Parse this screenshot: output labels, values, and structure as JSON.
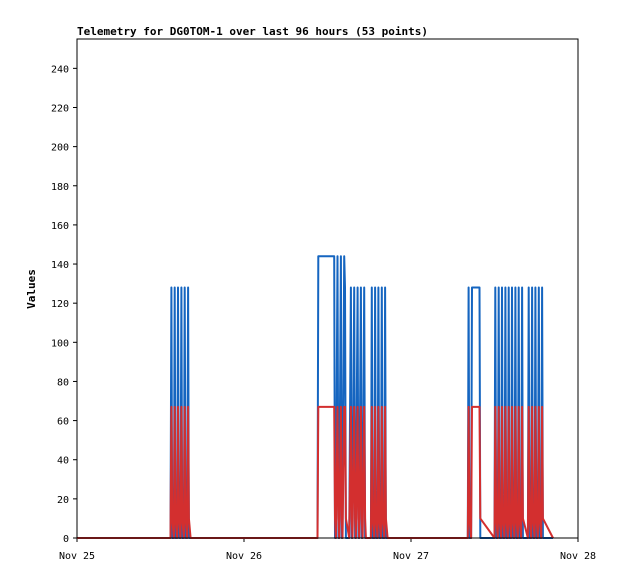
{
  "chart_data": {
    "type": "line",
    "title": "Telemetry for DG0TOM-1 over last 96 hours (53 points)",
    "ylabel": "Values",
    "xlabel": "",
    "ylim": [
      0,
      255
    ],
    "xlim": [
      0,
      3
    ],
    "x_tick_labels": [
      {
        "x": 0,
        "label": "Nov 25"
      },
      {
        "x": 1,
        "label": "Nov 26"
      },
      {
        "x": 2,
        "label": "Nov 27"
      },
      {
        "x": 3,
        "label": "Nov 28"
      }
    ],
    "y_ticks": [
      0,
      20,
      40,
      60,
      80,
      100,
      120,
      140,
      160,
      180,
      200,
      220,
      240
    ],
    "grid": false,
    "series": [
      {
        "color": "#1565c0",
        "x": [
          0,
          0.56,
          0.565,
          0.57,
          0.58,
          0.585,
          0.59,
          0.6,
          0.605,
          0.61,
          0.62,
          0.625,
          0.63,
          0.64,
          0.645,
          0.65,
          0.66,
          0.665,
          0.67,
          0.68,
          1.44,
          1.445,
          1.45,
          1.54,
          1.545,
          1.55,
          1.56,
          1.565,
          1.57,
          1.58,
          1.585,
          1.59,
          1.6,
          1.605,
          1.61,
          1.63,
          1.64,
          1.645,
          1.65,
          1.66,
          1.665,
          1.67,
          1.68,
          1.685,
          1.69,
          1.7,
          1.705,
          1.71,
          1.72,
          1.725,
          1.73,
          1.74,
          1.76,
          1.765,
          1.77,
          1.78,
          1.785,
          1.79,
          1.8,
          1.805,
          1.81,
          1.82,
          1.825,
          1.83,
          1.84,
          1.845,
          1.85,
          1.86,
          2.34,
          2.345,
          2.35,
          2.36,
          2.365,
          2.37,
          2.39,
          2.41,
          2.415,
          2.5,
          2.505,
          2.51,
          2.52,
          2.525,
          2.53,
          2.54,
          2.545,
          2.55,
          2.56,
          2.565,
          2.57,
          2.58,
          2.585,
          2.59,
          2.6,
          2.605,
          2.61,
          2.62,
          2.625,
          2.63,
          2.64,
          2.645,
          2.65,
          2.66,
          2.665,
          2.67,
          2.7,
          2.705,
          2.71,
          2.72,
          2.725,
          2.73,
          2.74,
          2.745,
          2.75,
          2.76,
          2.765,
          2.77,
          2.78,
          2.785,
          2.79,
          2.85
        ],
        "y": [
          0,
          0,
          128,
          0,
          0,
          128,
          0,
          0,
          128,
          0,
          0,
          128,
          0,
          0,
          128,
          0,
          0,
          128,
          0,
          0,
          0,
          144,
          144,
          144,
          0,
          0,
          144,
          0,
          0,
          144,
          0,
          0,
          144,
          128,
          0,
          0,
          128,
          0,
          0,
          128,
          0,
          0,
          128,
          0,
          0,
          128,
          0,
          0,
          128,
          0,
          0,
          0,
          0,
          128,
          0,
          0,
          128,
          0,
          0,
          128,
          0,
          0,
          128,
          0,
          0,
          128,
          0,
          0,
          0,
          128,
          0,
          0,
          128,
          128,
          128,
          128,
          0,
          0,
          128,
          0,
          0,
          128,
          0,
          0,
          128,
          0,
          0,
          128,
          0,
          0,
          128,
          0,
          0,
          128,
          0,
          0,
          128,
          0,
          0,
          128,
          0,
          0,
          128,
          0,
          0,
          128,
          0,
          0,
          128,
          0,
          0,
          128,
          0,
          0,
          128,
          0,
          0,
          128,
          0,
          0
        ]
      },
      {
        "color": "#d32f2f",
        "x": [
          0,
          0.56,
          0.565,
          0.57,
          0.58,
          0.585,
          0.59,
          0.6,
          0.605,
          0.61,
          0.62,
          0.625,
          0.63,
          0.64,
          0.645,
          0.65,
          0.66,
          0.665,
          0.67,
          0.68,
          1.44,
          1.445,
          1.45,
          1.54,
          1.545,
          1.55,
          1.56,
          1.565,
          1.57,
          1.58,
          1.585,
          1.59,
          1.6,
          1.605,
          1.61,
          1.63,
          1.64,
          1.645,
          1.65,
          1.66,
          1.665,
          1.67,
          1.68,
          1.685,
          1.69,
          1.7,
          1.705,
          1.71,
          1.72,
          1.725,
          1.73,
          1.74,
          1.76,
          1.765,
          1.77,
          1.78,
          1.785,
          1.79,
          1.8,
          1.805,
          1.81,
          1.82,
          1.825,
          1.83,
          1.84,
          1.845,
          1.85,
          1.86,
          2.34,
          2.345,
          2.35,
          2.36,
          2.365,
          2.37,
          2.39,
          2.41,
          2.415,
          2.5,
          2.505,
          2.51,
          2.52,
          2.525,
          2.53,
          2.54,
          2.545,
          2.55,
          2.56,
          2.565,
          2.57,
          2.58,
          2.585,
          2.59,
          2.6,
          2.605,
          2.61,
          2.62,
          2.625,
          2.63,
          2.64,
          2.645,
          2.65,
          2.66,
          2.665,
          2.67,
          2.7,
          2.705,
          2.71,
          2.72,
          2.725,
          2.73,
          2.74,
          2.745,
          2.75,
          2.76,
          2.765,
          2.77,
          2.78,
          2.785,
          2.79,
          2.85
        ],
        "y": [
          0,
          0,
          67,
          10,
          0,
          67,
          10,
          0,
          67,
          10,
          0,
          67,
          10,
          0,
          67,
          10,
          0,
          67,
          10,
          0,
          0,
          67,
          67,
          67,
          10,
          0,
          67,
          10,
          0,
          67,
          10,
          0,
          67,
          67,
          10,
          0,
          67,
          10,
          0,
          67,
          10,
          0,
          67,
          10,
          0,
          67,
          10,
          0,
          67,
          10,
          0,
          0,
          0,
          67,
          10,
          0,
          67,
          10,
          0,
          67,
          10,
          0,
          67,
          10,
          0,
          67,
          10,
          0,
          0,
          67,
          10,
          0,
          67,
          67,
          67,
          67,
          10,
          0,
          67,
          10,
          0,
          67,
          10,
          0,
          67,
          10,
          0,
          67,
          10,
          0,
          67,
          10,
          0,
          67,
          10,
          0,
          67,
          10,
          0,
          67,
          10,
          0,
          67,
          10,
          0,
          67,
          10,
          0,
          67,
          10,
          0,
          67,
          10,
          0,
          67,
          10,
          0,
          67,
          10,
          0
        ]
      }
    ]
  }
}
